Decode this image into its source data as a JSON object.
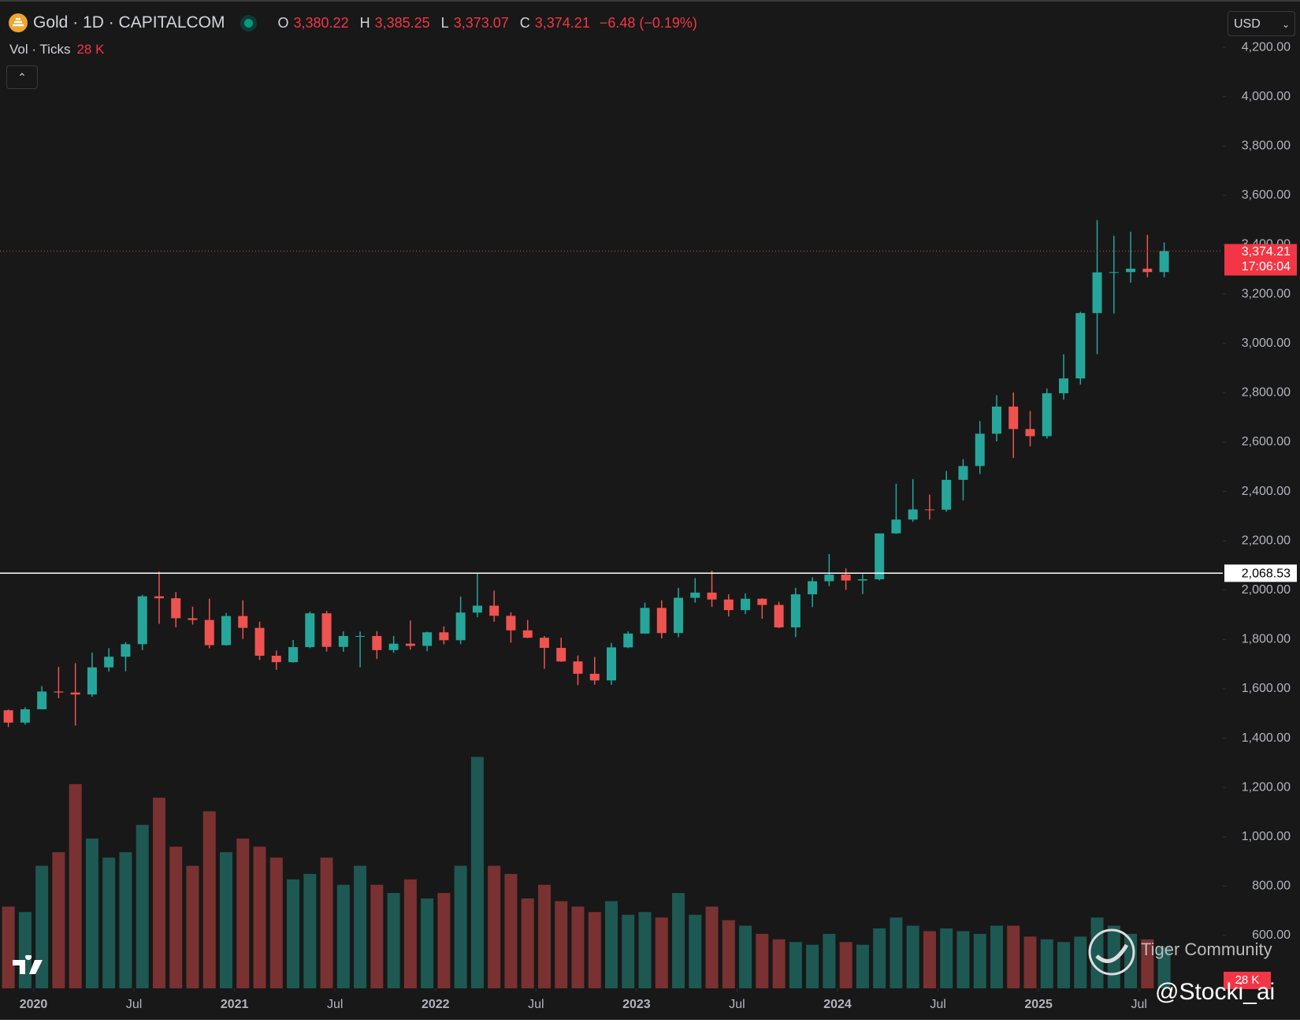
{
  "header": {
    "symbol": "Gold · 1D · CAPITALCOM",
    "o_letter": "O",
    "open": "3,380.22",
    "h_letter": "H",
    "high": "3,385.25",
    "l_letter": "L",
    "low": "3,373.07",
    "c_letter": "C",
    "close": "3,374.21",
    "change": "−6.48 (−0.19%)",
    "vol_name": "Vol · Ticks",
    "vol_value": "28 K",
    "currency": "USD"
  },
  "watermark": {
    "community": "Tiger Community",
    "handle": "@Stocki_ai"
  },
  "chart_data": {
    "type": "candlestick",
    "up_color": "#26a69a",
    "down_color": "#ef5350",
    "x": [
      "2019-11",
      "2019-12",
      "2020-01",
      "2020-02",
      "2020-03",
      "2020-04",
      "2020-05",
      "2020-06",
      "2020-07",
      "2020-08",
      "2020-09",
      "2020-10",
      "2020-11",
      "2020-12",
      "2021-01",
      "2021-02",
      "2021-03",
      "2021-04",
      "2021-05",
      "2021-06",
      "2021-07",
      "2021-08",
      "2021-09",
      "2021-10",
      "2021-11",
      "2021-12",
      "2022-01",
      "2022-02",
      "2022-03",
      "2022-04",
      "2022-05",
      "2022-06",
      "2022-07",
      "2022-08",
      "2022-09",
      "2022-10",
      "2022-11",
      "2022-12",
      "2023-01",
      "2023-02",
      "2023-03",
      "2023-04",
      "2023-05",
      "2023-06",
      "2023-07",
      "2023-08",
      "2023-09",
      "2023-10",
      "2023-11",
      "2023-12",
      "2024-01",
      "2024-02",
      "2024-03",
      "2024-04",
      "2024-05",
      "2024-06",
      "2024-07",
      "2024-08",
      "2024-09",
      "2024-10",
      "2024-11",
      "2024-12",
      "2025-01",
      "2025-02",
      "2025-03",
      "2025-04",
      "2025-05",
      "2025-06",
      "2025-07",
      "2025-08"
    ],
    "open": [
      1513,
      1463,
      1517,
      1589,
      1585,
      1577,
      1687,
      1730,
      1781,
      1975,
      1967,
      1886,
      1879,
      1777,
      1895,
      1847,
      1734,
      1708,
      1769,
      1906,
      1770,
      1814,
      1814,
      1757,
      1783,
      1774,
      1829,
      1797,
      1909,
      1937,
      1896,
      1837,
      1807,
      1766,
      1711,
      1661,
      1634,
      1768,
      1824,
      1928,
      1826,
      1969,
      1990,
      1962,
      1919,
      1965,
      1940,
      1849,
      1983,
      2036,
      2063,
      2039,
      2044,
      2230,
      2286,
      2327,
      2326,
      2447,
      2503,
      2634,
      2744,
      2653,
      2624,
      2798,
      2858,
      3123,
      3288,
      3289,
      3303,
      3289
    ],
    "high": [
      1516,
      1525,
      1611,
      1689,
      1704,
      1747,
      1765,
      1789,
      1981,
      2075,
      1992,
      1933,
      1965,
      1907,
      1959,
      1872,
      1755,
      1798,
      1913,
      1916,
      1833,
      1832,
      1834,
      1814,
      1877,
      1831,
      1853,
      1974,
      2070,
      1998,
      1910,
      1879,
      1814,
      1807,
      1735,
      1729,
      1786,
      1833,
      1949,
      1959,
      2009,
      2049,
      2079,
      1983,
      1987,
      1967,
      1953,
      2009,
      2052,
      2146,
      2088,
      2065,
      2223,
      2431,
      2450,
      2387,
      2483,
      2531,
      2685,
      2790,
      2801,
      2726,
      2817,
      2956,
      3128,
      3500,
      3436,
      3452,
      3440,
      3409
    ],
    "low": [
      1445,
      1455,
      1517,
      1562,
      1451,
      1568,
      1670,
      1671,
      1757,
      1863,
      1849,
      1860,
      1764,
      1775,
      1802,
      1717,
      1677,
      1706,
      1765,
      1751,
      1750,
      1687,
      1721,
      1746,
      1759,
      1753,
      1780,
      1781,
      1890,
      1872,
      1787,
      1805,
      1681,
      1709,
      1615,
      1617,
      1616,
      1765,
      1823,
      1804,
      1809,
      1949,
      1932,
      1893,
      1903,
      1884,
      1846,
      1810,
      1931,
      2016,
      2001,
      1984,
      2039,
      2228,
      2277,
      2286,
      2318,
      2364,
      2471,
      2603,
      2536,
      2583,
      2614,
      2772,
      2833,
      2957,
      3121,
      3246,
      3268,
      3268
    ],
    "close": [
      1463,
      1517,
      1589,
      1585,
      1577,
      1687,
      1730,
      1781,
      1975,
      1967,
      1886,
      1879,
      1777,
      1895,
      1847,
      1734,
      1708,
      1769,
      1906,
      1770,
      1814,
      1814,
      1757,
      1783,
      1774,
      1829,
      1797,
      1909,
      1937,
      1896,
      1837,
      1807,
      1766,
      1711,
      1661,
      1634,
      1768,
      1824,
      1928,
      1826,
      1969,
      1990,
      1962,
      1919,
      1965,
      1940,
      1849,
      1983,
      2036,
      2063,
      2039,
      2044,
      2230,
      2286,
      2327,
      2326,
      2447,
      2503,
      2634,
      2744,
      2653,
      2624,
      2798,
      2858,
      3123,
      3288,
      3289,
      3303,
      3289,
      3374.21
    ],
    "volume": [
      300,
      280,
      450,
      500,
      750,
      550,
      480,
      500,
      600,
      700,
      520,
      450,
      650,
      500,
      550,
      520,
      480,
      400,
      420,
      480,
      380,
      450,
      380,
      350,
      400,
      330,
      350,
      450,
      850,
      450,
      420,
      330,
      380,
      320,
      300,
      280,
      320,
      270,
      280,
      260,
      350,
      270,
      300,
      250,
      230,
      200,
      180,
      170,
      160,
      200,
      170,
      160,
      220,
      260,
      230,
      210,
      220,
      210,
      200,
      230,
      230,
      190,
      180,
      170,
      190,
      260,
      230,
      200,
      180,
      150
    ],
    "xlim": [
      "2019-11",
      "2025-12"
    ],
    "xticks": [
      {
        "value": "2020-01",
        "label": "2020"
      },
      {
        "value": "2020-07",
        "label": "Jul"
      },
      {
        "value": "2021-01",
        "label": "2021"
      },
      {
        "value": "2021-07",
        "label": "Jul"
      },
      {
        "value": "2022-01",
        "label": "2022"
      },
      {
        "value": "2022-07",
        "label": "Jul"
      },
      {
        "value": "2023-01",
        "label": "2023"
      },
      {
        "value": "2023-07",
        "label": "Jul"
      },
      {
        "value": "2024-01",
        "label": "2024"
      },
      {
        "value": "2024-07",
        "label": "Jul"
      },
      {
        "value": "2025-01",
        "label": "2025"
      },
      {
        "value": "2025-07",
        "label": "Jul"
      }
    ],
    "ylim": [
      386,
      4360
    ],
    "yticks": [
      {
        "value": 600,
        "label": "600.00"
      },
      {
        "value": 800,
        "label": "800.00"
      },
      {
        "value": 1000,
        "label": "1,000.00"
      },
      {
        "value": 1200,
        "label": "1,200.00"
      },
      {
        "value": 1400,
        "label": "1,400.00"
      },
      {
        "value": 1600,
        "label": "1,600.00"
      },
      {
        "value": 1800,
        "label": "1,800.00"
      },
      {
        "value": 2000,
        "label": "2,000.00"
      },
      {
        "value": 2200,
        "label": "2,200.00"
      },
      {
        "value": 2400,
        "label": "2,400.00"
      },
      {
        "value": 2600,
        "label": "2,600.00"
      },
      {
        "value": 2800,
        "label": "2,800.00"
      },
      {
        "value": 3000,
        "label": "3,000.00"
      },
      {
        "value": 3200,
        "label": "3,200.00"
      },
      {
        "value": 3400,
        "label": "3,400.00"
      },
      {
        "value": 3600,
        "label": "3,600.00"
      },
      {
        "value": 3800,
        "label": "3,800.00"
      },
      {
        "value": 4000,
        "label": "4,000.00"
      },
      {
        "value": 4200,
        "label": "4,200.00"
      }
    ],
    "volume_ylim": [
      0,
      3600
    ],
    "price_line": {
      "value": 3374.21,
      "label": "3,374.21",
      "timer": "17:06:04",
      "color": "#f23645"
    },
    "level_line": {
      "value": 2068.53,
      "label": "2,068.53",
      "color": "#ffffff"
    }
  }
}
